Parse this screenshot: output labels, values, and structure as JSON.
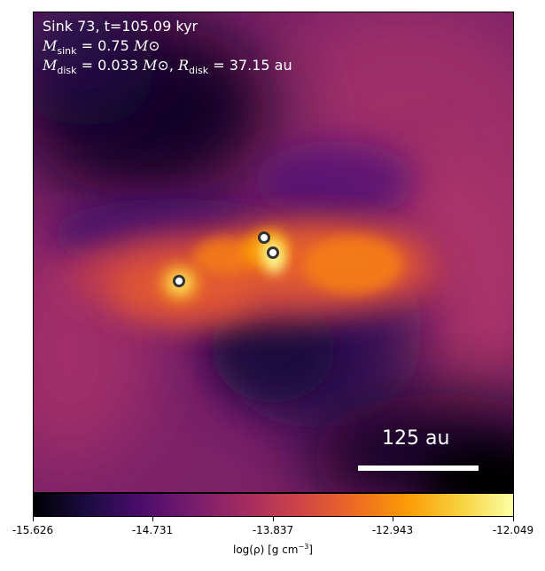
{
  "annotation": {
    "line1": "Sink 73, t=105.09 kyr",
    "msink_symbol": "M",
    "msink_sub": "sink",
    "msink_value": "= 0.75",
    "mdisk_symbol": "M",
    "mdisk_sub": "disk",
    "mdisk_value": "= 0.033",
    "rdisk_symbol": "R",
    "rdisk_sub": "disk",
    "rdisk_value": "= 37.15 au",
    "solar_symbol": "M⊙"
  },
  "scale_bar": {
    "label": "125 au"
  },
  "colorbar": {
    "colormap": "inferno",
    "label_main": "log(ρ) [g cm",
    "label_exp": "−3",
    "label_end": "]",
    "ticks": [
      "-15.626",
      "-14.731",
      "-13.837",
      "-12.943",
      "-12.049"
    ]
  },
  "sinks": {
    "count": 3,
    "fill": "#ffffff",
    "stroke": "#333333"
  },
  "colors": {
    "background_dark": "#0b0524",
    "ambient": "#8a2669",
    "disk_hot": "#fca50a",
    "disk_core": "#fcffa4"
  }
}
